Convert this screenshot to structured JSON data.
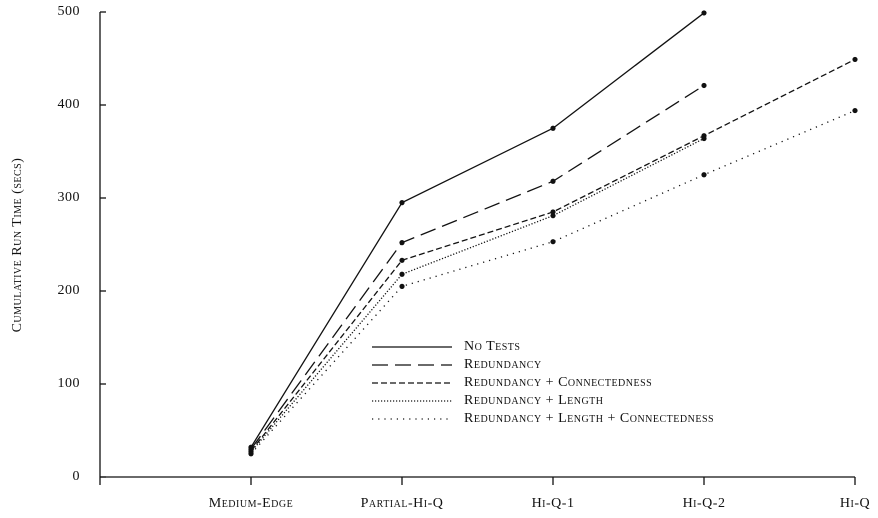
{
  "chart_data": {
    "type": "line",
    "ylabel": "Cumulative Run Time (secs)",
    "categories": [
      null,
      "Medium-Edge",
      "Partial-Hi-Q",
      "Hi-Q-1",
      "Hi-Q-2",
      "Hi-Q"
    ],
    "ylim": [
      0,
      500
    ],
    "yticks": [
      0,
      100,
      200,
      300,
      400,
      500
    ],
    "series": [
      {
        "name": "No Tests",
        "color": "#111111",
        "dash": "none",
        "values": [
          null,
          32,
          295,
          375,
          499,
          null
        ]
      },
      {
        "name": "Redundancy",
        "color": "#111111",
        "dash": "16 7",
        "values": [
          null,
          30,
          252,
          318,
          421,
          null
        ]
      },
      {
        "name": "Redundancy + Connectedness",
        "color": "#111111",
        "dash": "6 3",
        "values": [
          null,
          28,
          233,
          285,
          367,
          449
        ]
      },
      {
        "name": "Redundancy + Length",
        "color": "#111111",
        "dash": "1.2 1.8",
        "values": [
          null,
          27,
          218,
          281,
          364,
          null
        ]
      },
      {
        "name": "Redundancy + Length + Connectedness",
        "color": "#111111",
        "dash": "1.2 5",
        "values": [
          null,
          25,
          205,
          253,
          325,
          394
        ]
      }
    ],
    "legend": "lower right"
  }
}
